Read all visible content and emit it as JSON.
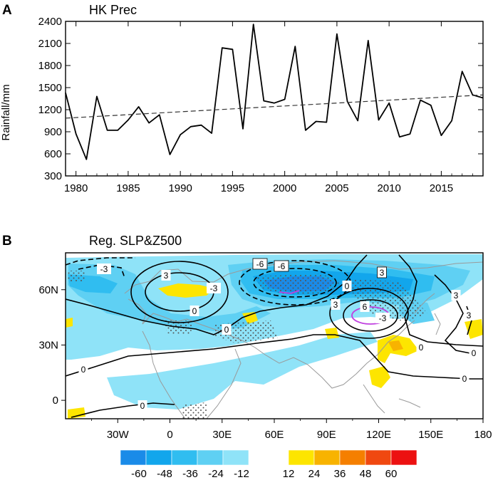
{
  "panel_a": {
    "letter": "A",
    "chart_data": {
      "type": "line",
      "title": "HK Prec",
      "xlabel": "",
      "ylabel": "Rainfall/mm",
      "xlim": [
        1979,
        2019
      ],
      "ylim": [
        300,
        2400
      ],
      "x_ticks": [
        1980,
        1985,
        1990,
        1995,
        2000,
        2005,
        2010,
        2015
      ],
      "y_ticks": [
        300,
        600,
        900,
        1200,
        1500,
        1800,
        2100,
        2400
      ],
      "series": [
        {
          "name": "HK Prec",
          "x": [
            1979,
            1980,
            1981,
            1982,
            1983,
            1984,
            1985,
            1986,
            1987,
            1988,
            1989,
            1990,
            1991,
            1992,
            1993,
            1994,
            1995,
            1996,
            1997,
            1998,
            1999,
            2000,
            2001,
            2002,
            2003,
            2004,
            2005,
            2006,
            2007,
            2008,
            2009,
            2010,
            2011,
            2012,
            2013,
            2014,
            2015,
            2016,
            2017,
            2018,
            2019
          ],
          "values": [
            1430,
            870,
            525,
            1380,
            920,
            920,
            1060,
            1240,
            1020,
            1130,
            590,
            860,
            970,
            990,
            880,
            2040,
            2020,
            940,
            2360,
            1320,
            1290,
            1340,
            2060,
            920,
            1040,
            1030,
            2230,
            1310,
            1050,
            2140,
            1060,
            1290,
            830,
            870,
            1330,
            1260,
            850,
            1050,
            1720,
            1400,
            1360
          ]
        },
        {
          "name": "Linear trend",
          "style": "dashed",
          "x": [
            1979,
            2019
          ],
          "values": [
            1085,
            1400
          ]
        }
      ]
    }
  },
  "panel_b": {
    "letter": "B",
    "title": "Reg. SLP&Z500",
    "x_tick_labels": [
      "30W",
      "0",
      "30E",
      "60E",
      "90E",
      "120E",
      "150E",
      "180"
    ],
    "x_tick_lons": [
      -30,
      0,
      30,
      60,
      90,
      120,
      150,
      180
    ],
    "y_tick_labels": [
      "60N",
      "30N",
      "0"
    ],
    "y_tick_lats": [
      60,
      30,
      0
    ],
    "lon_range": [
      -60,
      180
    ],
    "lat_range": [
      -10,
      80
    ],
    "contour_labels": [
      "-3",
      "-6",
      "-6",
      "3",
      "-3",
      "0",
      "3",
      "0",
      "-3",
      "3",
      "6",
      "3",
      "0",
      "0",
      "0",
      "0",
      "0",
      "0",
      "3"
    ],
    "colorbar": {
      "negative_labels": [
        "-60",
        "-48",
        "-36",
        "-24",
        "-12"
      ],
      "positive_labels": [
        "12",
        "24",
        "36",
        "48",
        "60"
      ],
      "negative_colors": [
        "#1a8be8",
        "#12a6ec",
        "#30bdf0",
        "#5fd0f3",
        "#8fe3f8"
      ],
      "positive_colors": [
        "#fde500",
        "#f8b300",
        "#f57f00",
        "#f04810",
        "#ec1111"
      ]
    },
    "colors": {
      "contour": "#000000",
      "coast": "#9a9a9a",
      "highlight_contour": "#c040e0"
    }
  }
}
